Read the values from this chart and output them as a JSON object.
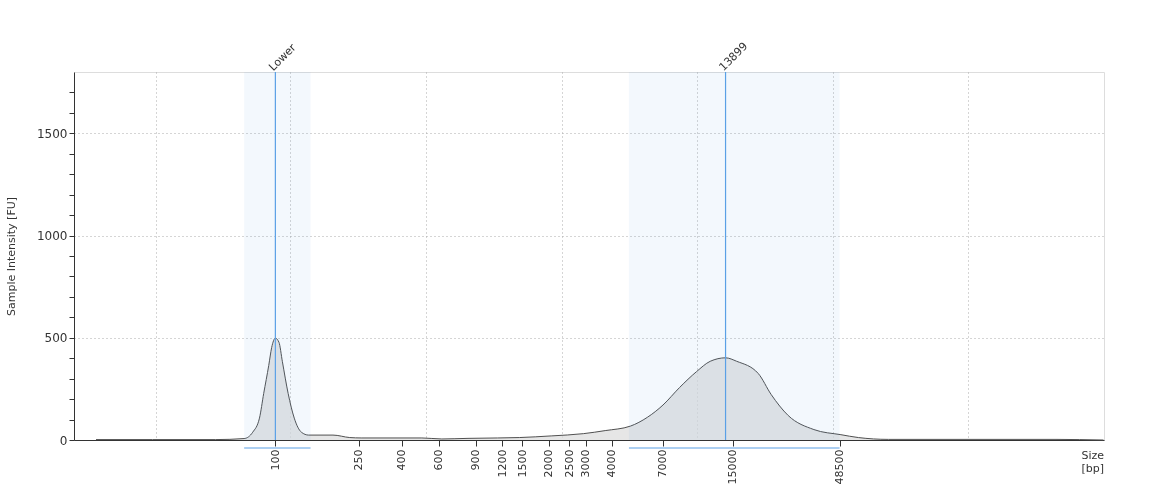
{
  "chart_data": {
    "type": "area",
    "xlabel": "Size [bp]",
    "ylabel": "Sample Intensity [FU]",
    "x": [
      14,
      26,
      52,
      71,
      78,
      84,
      88,
      93,
      96,
      100,
      104,
      108,
      115,
      123,
      133,
      144,
      188,
      226,
      256,
      498,
      620,
      826,
      1143,
      1449,
      2056,
      2924,
      3715,
      4900,
      5900,
      7000,
      8400,
      10100,
      11750,
      13899,
      15700,
      19900,
      22900,
      27600,
      36600,
      49200,
      59600,
      82800,
      520000,
      875000
    ],
    "series": [
      {
        "color": "#dcdcdc",
        "values": [
          2,
          2,
          2,
          7,
          38,
          107,
          228,
          365,
          452,
          498,
          478,
          383,
          228,
          107,
          38,
          24,
          24,
          12,
          10,
          10,
          5,
          8,
          10,
          12,
          20,
          31,
          46,
          68,
          111,
          171,
          257,
          334,
          385,
          402,
          385,
          325,
          223,
          120,
          51,
          26,
          12,
          3,
          3,
          0
        ]
      }
    ],
    "log": "x",
    "xlim": [
      11,
      880000
    ],
    "xticks": [
      100,
      250,
      400,
      600,
      900,
      1200,
      1500,
      2000,
      2500,
      3000,
      4000,
      7000,
      15000,
      48500,
      {
        "value": 27,
        "label": null
      },
      {
        "value": 118,
        "label": null
      },
      {
        "value": 523,
        "label": null
      },
      {
        "value": 2310,
        "label": null
      },
      {
        "value": 10200,
        "label": null
      },
      {
        "value": 45000,
        "label": null
      },
      {
        "value": 199000,
        "label": null
      }
    ],
    "ylim": [
      0,
      1800
    ],
    "yticks": [
      0,
      500,
      1000,
      1500,
      {
        "value": 100,
        "label": null
      },
      {
        "value": 200,
        "label": null
      },
      {
        "value": 300,
        "label": null
      },
      {
        "value": 400,
        "label": null
      },
      {
        "value": 600,
        "label": null
      },
      {
        "value": 700,
        "label": null
      },
      {
        "value": 800,
        "label": null
      },
      {
        "value": 900,
        "label": null
      },
      {
        "value": 1100,
        "label": null
      },
      {
        "value": 1200,
        "label": null
      },
      {
        "value": 1300,
        "label": null
      },
      {
        "value": 1400,
        "label": null
      },
      {
        "value": 1600,
        "label": null
      },
      {
        "value": 1700,
        "label": null
      }
    ],
    "grid": true,
    "ref_lines": [
      {
        "axis": "x",
        "value": 100,
        "label": "Lower",
        "color": "#5aa0e6"
      },
      {
        "axis": "x",
        "value": 13899,
        "label": "13899",
        "color": "#5aa0e6"
      }
    ],
    "bands": [
      {
        "axis": "x",
        "from": 71,
        "to": 147,
        "color": "#5aa0e6"
      },
      {
        "axis": "x",
        "from": 4820,
        "to": 48500,
        "color": "#5aa0e6"
      }
    ]
  }
}
